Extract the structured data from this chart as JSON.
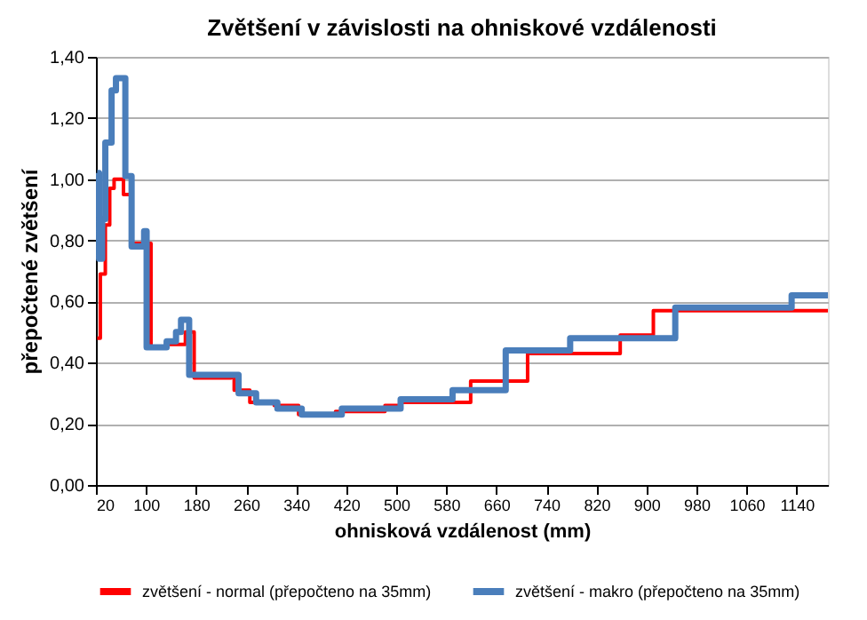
{
  "chart_data": {
    "type": "step",
    "title": "Zvětšení v závislosti na ohniskové vzdálenosti",
    "xlabel": "ohnisková vzdálenost (mm)",
    "ylabel": "přepočtené zvětšení",
    "xlim": [
      20,
      1190
    ],
    "xticks": [
      20,
      100,
      180,
      260,
      340,
      420,
      500,
      580,
      660,
      740,
      820,
      900,
      980,
      1060,
      1140
    ],
    "ylim": [
      0,
      1.4
    ],
    "yticks": [
      {
        "value": 0,
        "label": "0,00"
      },
      {
        "value": 0.2,
        "label": "0,20"
      },
      {
        "value": 0.4,
        "label": "0,40"
      },
      {
        "value": 0.6,
        "label": "0,60"
      },
      {
        "value": 0.8,
        "label": "0,80"
      },
      {
        "value": 1.0,
        "label": "1,00"
      },
      {
        "value": 1.2,
        "label": "1,20"
      },
      {
        "value": 1.4,
        "label": "1,40"
      }
    ],
    "grid": "y",
    "legend": "bottom",
    "line_style": "solid",
    "marker": "none",
    "series": [
      {
        "name": "zvětšení - normal (přepočteno na 35mm)",
        "color": "#ff0000",
        "x": [
          22,
          27,
          35,
          42,
          49,
          64,
          77,
          108,
          133,
          163,
          177,
          236,
          241,
          266,
          305,
          344,
          403,
          482,
          507,
          619,
          710,
          858,
          911,
          1190
        ],
        "values": [
          0.48,
          0.69,
          0.85,
          0.97,
          1.0,
          0.95,
          0.79,
          0.45,
          0.46,
          0.5,
          0.35,
          0.36,
          0.31,
          0.27,
          0.26,
          0.23,
          0.24,
          0.26,
          0.27,
          0.34,
          0.43,
          0.49,
          0.57,
          0.57
        ]
      },
      {
        "name": "zvětšení - makro (přepočteno na 35mm)",
        "color": "#4a7ebb",
        "x": [
          22,
          25,
          30,
          35,
          45,
          52,
          67,
          77,
          97,
          101,
          133,
          148,
          156,
          169,
          248,
          276,
          310,
          349,
          413,
          507,
          590,
          675,
          778,
          946,
          1132,
          1190
        ],
        "values": [
          1.02,
          0.74,
          0.87,
          1.12,
          1.29,
          1.33,
          1.01,
          0.78,
          0.83,
          0.45,
          0.47,
          0.5,
          0.54,
          0.36,
          0.3,
          0.27,
          0.25,
          0.23,
          0.25,
          0.28,
          0.31,
          0.44,
          0.48,
          0.58,
          0.62,
          0.62
        ]
      }
    ]
  }
}
